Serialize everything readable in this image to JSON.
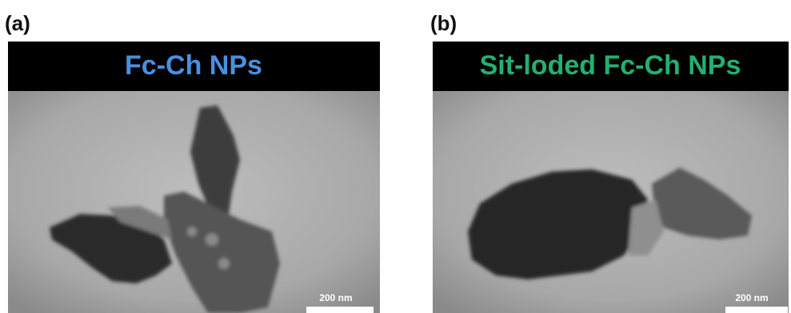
{
  "panels": [
    {
      "label": "(a)",
      "title": "Fc-Ch NPs",
      "title_color": "#4a8fe0",
      "scale_bar": "200 nm"
    },
    {
      "label": "(b)",
      "title": "Sit-loded Fc-Ch NPs",
      "title_color": "#22b070",
      "scale_bar": "200 nm"
    }
  ]
}
